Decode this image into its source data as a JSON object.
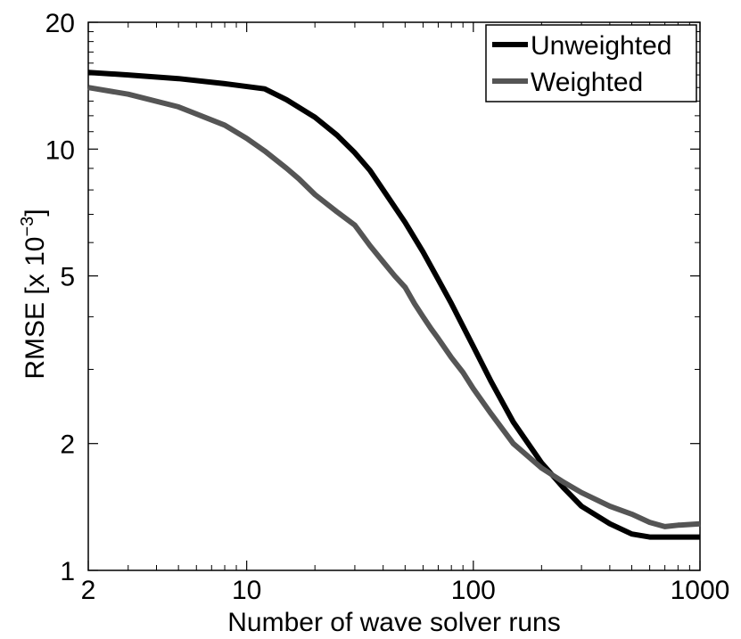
{
  "chart_data": {
    "type": "line",
    "xscale": "log",
    "yscale": "log",
    "xlabel": "Number of wave solver runs",
    "ylabel_main": "RMSE [x 10",
    "ylabel_exp": "−3",
    "ylabel_close": "]",
    "xlim": [
      2,
      1000
    ],
    "ylim": [
      1,
      20
    ],
    "xticks": [
      2,
      10,
      100,
      1000
    ],
    "xtick_labels": [
      "2",
      "10",
      "100",
      "1000"
    ],
    "yticks": [
      1,
      2,
      5,
      10,
      20
    ],
    "ytick_labels": [
      "1",
      "2",
      "5",
      "10",
      "20"
    ],
    "legend_position": "top-right",
    "series": [
      {
        "name": "Unweighted",
        "color": "#000000",
        "x": [
          2,
          3,
          5,
          8,
          12,
          15,
          20,
          25,
          30,
          35,
          40,
          50,
          60,
          70,
          80,
          100,
          120,
          150,
          200,
          250,
          300,
          400,
          500,
          600,
          700,
          800,
          1000
        ],
        "y": [
          15.2,
          15.0,
          14.7,
          14.3,
          13.9,
          13.1,
          11.9,
          10.8,
          9.8,
          8.9,
          8.0,
          6.7,
          5.7,
          4.9,
          4.3,
          3.4,
          2.8,
          2.25,
          1.8,
          1.57,
          1.42,
          1.29,
          1.22,
          1.2,
          1.2,
          1.2,
          1.2
        ]
      },
      {
        "name": "Weighted",
        "color": "#555555",
        "x": [
          2,
          3,
          5,
          8,
          10,
          12,
          15,
          17,
          20,
          25,
          30,
          35,
          40,
          45,
          50,
          55,
          60,
          65,
          70,
          80,
          90,
          100,
          120,
          150,
          200,
          250,
          300,
          400,
          500,
          600,
          700,
          800,
          1000
        ],
        "y": [
          14.0,
          13.5,
          12.6,
          11.4,
          10.6,
          9.9,
          9.0,
          8.5,
          7.8,
          7.1,
          6.6,
          5.9,
          5.4,
          5.0,
          4.7,
          4.3,
          4.0,
          3.75,
          3.55,
          3.2,
          2.95,
          2.7,
          2.35,
          2.0,
          1.75,
          1.62,
          1.53,
          1.42,
          1.36,
          1.3,
          1.27,
          1.28,
          1.29
        ]
      }
    ]
  }
}
